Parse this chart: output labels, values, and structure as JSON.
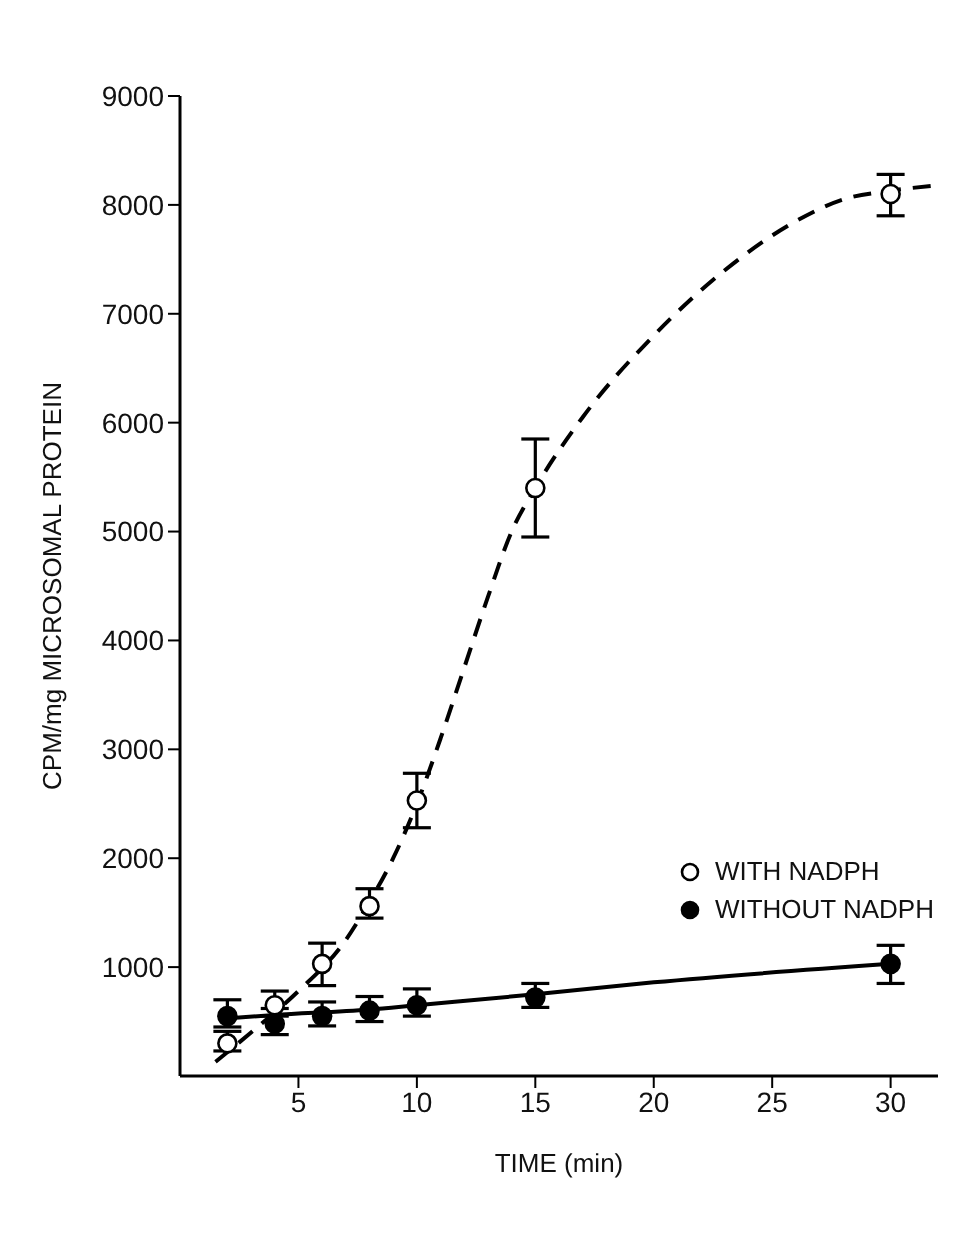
{
  "chart_data": {
    "type": "scatter",
    "xlabel": "TIME (min)",
    "ylabel": "CPM/mg MICROSOMAL PROTEIN",
    "xlim": [
      0,
      32
    ],
    "xticks": [
      5,
      10,
      15,
      20,
      25,
      30
    ],
    "ylim": [
      0,
      9000
    ],
    "yticks": [
      1000,
      2000,
      3000,
      4000,
      5000,
      6000,
      7000,
      8000,
      9000
    ],
    "grid": false,
    "legend": "right",
    "marker": "circle",
    "series": [
      {
        "name": "WITH NADPH",
        "color": "#ffffff",
        "x": [
          2,
          4,
          6,
          8,
          10,
          15,
          30
        ],
        "values": [
          300,
          650,
          1030,
          1560,
          2530,
          5400,
          8100
        ],
        "errors": [
          [
            230,
            410
          ],
          [
            550,
            780
          ],
          [
            830,
            1220
          ],
          [
            1450,
            1720
          ],
          [
            2280,
            2780
          ],
          [
            4950,
            5850
          ],
          [
            7900,
            8280
          ]
        ]
      },
      {
        "name": "WITHOUT NADPH",
        "color": "#000000",
        "x": [
          2,
          4,
          6,
          8,
          10,
          15,
          30
        ],
        "values": [
          550,
          480,
          550,
          600,
          650,
          720,
          1030
        ],
        "errors": [
          [
            450,
            700
          ],
          [
            380,
            620
          ],
          [
            460,
            680
          ],
          [
            500,
            730
          ],
          [
            550,
            800
          ],
          [
            630,
            850
          ],
          [
            850,
            1200
          ]
        ]
      },
      {
        "type": "line",
        "color": "#000000",
        "line_style": "dashed",
        "marker": "none",
        "x": [
          1.5,
          3,
          5,
          7,
          8,
          9,
          10,
          11,
          12,
          13,
          14,
          15,
          17,
          20,
          23,
          26,
          28,
          30,
          32
        ],
        "values": [
          130,
          400,
          780,
          1250,
          1600,
          2000,
          2500,
          3100,
          3750,
          4400,
          5000,
          5400,
          6050,
          6800,
          7400,
          7850,
          8050,
          8130,
          8180
        ]
      },
      {
        "type": "line",
        "color": "#000000",
        "line_style": "solid",
        "marker": "none",
        "x": [
          2,
          4,
          8,
          10,
          15,
          20,
          30
        ],
        "values": [
          530,
          560,
          610,
          650,
          750,
          860,
          1030
        ]
      }
    ]
  }
}
